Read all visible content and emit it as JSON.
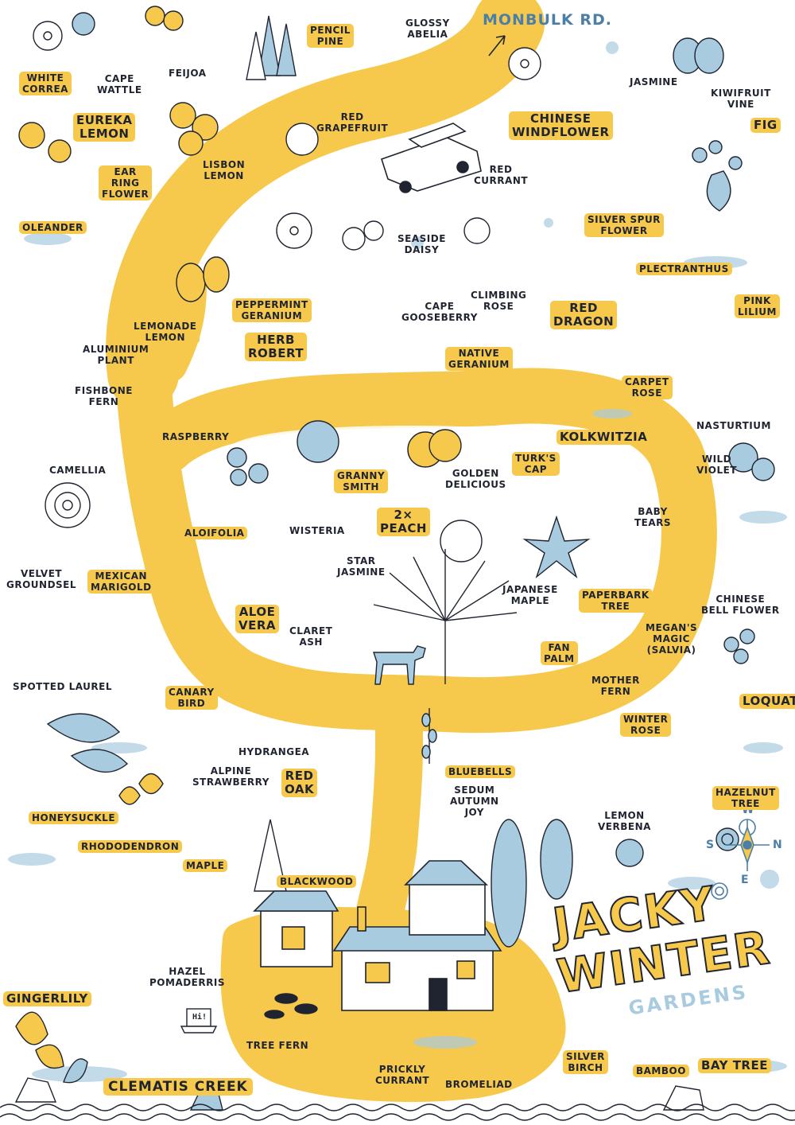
{
  "title": {
    "line1": "JACKY",
    "line2": "WINTER",
    "line3": "GARDENS"
  },
  "road_label": "MONBULK RD.",
  "creek_label": "CLEMATIS CREEK",
  "compass": {
    "n": "N",
    "s": "S",
    "e": "E",
    "w": "W"
  },
  "laptop_text": "Hi!",
  "colors": {
    "path_yellow": "#f6c94c",
    "accent_blue": "#a9cbe0",
    "ink": "#1f2430"
  },
  "icons": [
    "car-icon",
    "house-icon",
    "compass-icon",
    "dog-icon",
    "laptop-icon",
    "bird-icon",
    "plant-icon"
  ],
  "labels": {
    "white_correa": "WHITE\nCORREA",
    "cape_wattle": "CAPE\nWATTLE",
    "feijoa": "FEIJOA",
    "pencil_pine": "PENCIL\nPINE",
    "glossy_abelia": "GLOSSY\nABELIA",
    "jasmine": "JASMINE",
    "kiwifruit_vine": "KIWIFRUIT\nVINE",
    "fig": "FIG",
    "eureka_lemon": "EUREKA\nLEMON",
    "red_grapefruit": "RED\nGRAPEFRUIT",
    "chinese_windflower": "CHINESE\nWINDFLOWER",
    "lisbon_lemon": "LISBON\nLEMON",
    "red_currant": "RED\nCURRANT",
    "ear_ring_flower": "EAR\nRING\nFLOWER",
    "oleander": "OLEANDER",
    "silver_spur_flower": "SILVER SPUR\nFLOWER",
    "seaside_daisy": "SEASIDE\nDAISY",
    "plectranthus": "PLECTRANTHUS",
    "peppermint_geranium": "PEPPERMINT\nGERANIUM",
    "cape_gooseberry": "CAPE\nGOOSEBERRY",
    "climbing_rose": "CLIMBING\nROSE",
    "red_dragon": "RED\nDRAGON",
    "pink_lilium": "PINK\nLILIUM",
    "lemonade_lemon": "LEMONADE\nLEMON",
    "herb_robert": "HERB\nROBERT",
    "native_geranium": "NATIVE\nGERANIUM",
    "aluminium_plant": "ALUMINIUM\nPLANT",
    "carpet_rose": "CARPET\nROSE",
    "fishbone_fern": "FISHBONE\nFERN",
    "nasturtium": "NASTURTIUM",
    "raspberry": "RASPBERRY",
    "kolkwitzia": "KOLKWITZIA",
    "turks_cap": "TURK'S\nCAP",
    "golden_delicious": "GOLDEN\nDELICIOUS",
    "granny_smith": "GRANNY\nSMITH",
    "wild_violet": "WILD\nVIOLET",
    "camellia": "CAMELLIA",
    "aloifolia": "ALOIFOLIA",
    "wisteria": "WISTERIA",
    "peach": "2×\nPEACH",
    "baby_tears": "BABY\nTEARS",
    "star_jasmine": "STAR\nJASMINE",
    "velvet_groundsel": "VELVET\nGROUNDSEL",
    "mexican_marigold": "MEXICAN\nMARIGOLD",
    "japanese_maple": "JAPANESE\nMAPLE",
    "paperbark_tree": "PAPERBARK\nTREE",
    "chinese_bell_flower": "CHINESE\nBELL FLOWER",
    "aloe_vera": "ALOE\nVERA",
    "claret_ash": "CLARET\nASH",
    "megans_magic": "MEGAN'S\nMAGIC\n(SALVIA)",
    "fan_palm": "FAN\nPALM",
    "mother_fern": "MOTHER\nFERN",
    "spotted_laurel": "SPOTTED LAUREL",
    "canary_bird": "CANARY\nBIRD",
    "loquat": "LOQUAT",
    "hydrangea": "HYDRANGEA",
    "winter_rose": "WINTER\nROSE",
    "alpine_strawberry": "ALPINE\nSTRAWBERRY",
    "red_oak": "RED\nOAK",
    "bluebells": "BLUEBELLS",
    "sedum_autumn_joy": "SEDUM\nAUTUMN\nJOY",
    "hazelnut_tree": "HAZELNUT\nTREE",
    "honeysuckle": "HONEYSUCKLE",
    "lemon_verbena": "LEMON\nVERBENA",
    "rhododendron": "RHODODENDRON",
    "maple": "MAPLE",
    "blackwood": "BLACKWOOD",
    "hazel_pomaderris": "HAZEL\nPOMADERRIS",
    "gingerlily": "GINGERLILY",
    "tree_fern": "TREE FERN",
    "prickly_currant": "PRICKLY\nCURRANT",
    "bromeliad": "BROMELIAD",
    "silver_birch": "SILVER\nBIRCH",
    "bamboo": "BAMBOO",
    "bay_tree": "BAY TREE"
  }
}
